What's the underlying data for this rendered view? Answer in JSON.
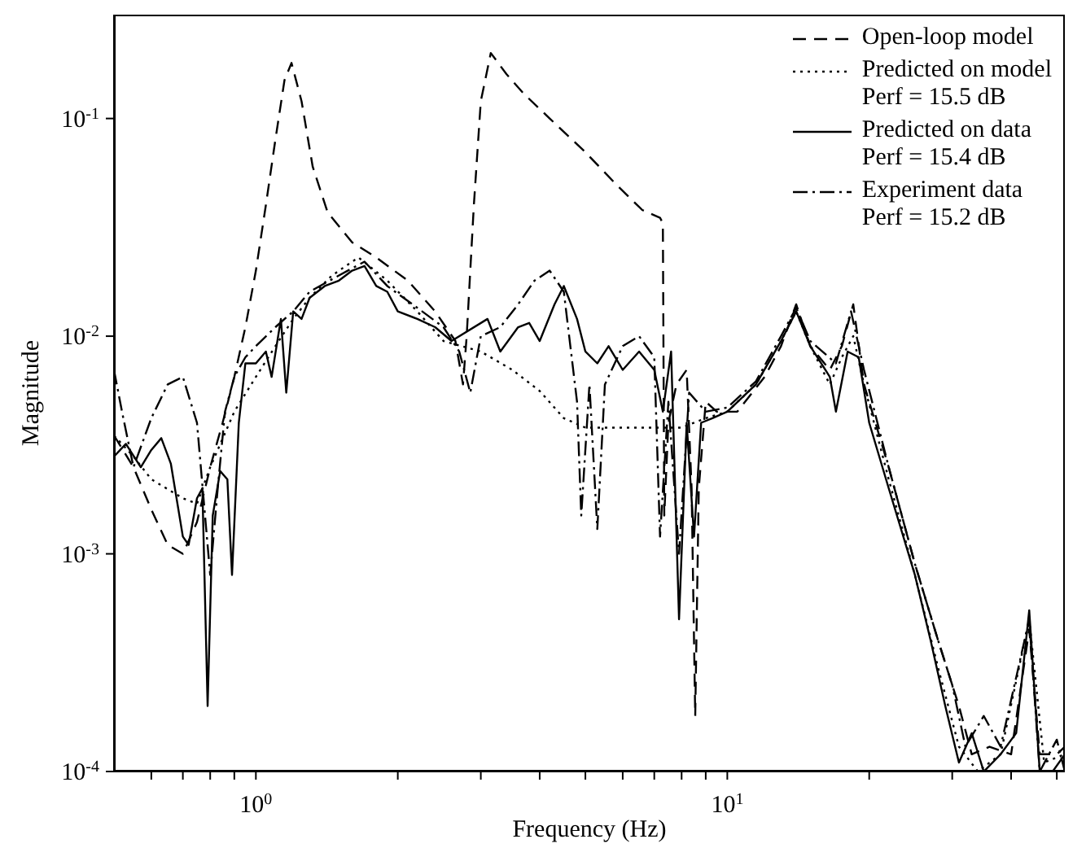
{
  "chart_data": {
    "type": "line",
    "xlabel": "Frequency (Hz)",
    "ylabel": "Magnitude",
    "log": "xy",
    "legend": "top right",
    "marker": "none",
    "xlim": [
      0.5,
      52
    ],
    "ylim": [
      0.0001,
      0.3
    ],
    "xticks": [
      {
        "value": 0.6,
        "label": null
      },
      {
        "value": 0.7,
        "label": null
      },
      {
        "value": 0.8,
        "label": null
      },
      {
        "value": 0.9,
        "label": null
      },
      {
        "value": 1,
        "label": "10$^{0}$"
      },
      {
        "value": 2,
        "label": null
      },
      {
        "value": 3,
        "label": null
      },
      {
        "value": 4,
        "label": null
      },
      {
        "value": 5,
        "label": null
      },
      {
        "value": 6,
        "label": null
      },
      {
        "value": 7,
        "label": null
      },
      {
        "value": 8,
        "label": null
      },
      {
        "value": 9,
        "label": null
      },
      {
        "value": 10,
        "label": "10$^{1}$"
      },
      {
        "value": 20,
        "label": null
      },
      {
        "value": 30,
        "label": null
      },
      {
        "value": 40,
        "label": null
      },
      {
        "value": 50,
        "label": null
      }
    ],
    "yticks": [
      {
        "value": 0.0001,
        "label": "10$^{-4}$"
      },
      {
        "value": 0.001,
        "label": "10$^{-3}$"
      },
      {
        "value": 0.01,
        "label": "10$^{-2}$"
      },
      {
        "value": 0.1,
        "label": "10$^{-1}$"
      }
    ],
    "series": [
      {
        "name": "Open-loop model",
        "color": "#000000",
        "line_style": "dashed",
        "x": [
          0.5,
          0.55,
          0.6,
          0.65,
          0.7,
          0.75,
          0.8,
          0.85,
          0.9,
          0.95,
          1.0,
          1.05,
          1.1,
          1.15,
          1.19,
          1.25,
          1.32,
          1.42,
          1.6,
          1.8,
          2.1,
          2.4,
          2.65,
          2.75,
          2.8,
          2.9,
          3.0,
          3.15,
          3.4,
          3.7,
          4.2,
          5.0,
          5.8,
          6.6,
          7.2,
          7.3,
          7.35,
          7.5,
          7.8,
          8.2,
          8.4,
          8.55,
          8.7,
          9,
          9.5,
          10.5,
          12,
          13,
          14,
          15,
          16.5,
          17.5,
          18.5,
          19.5,
          22,
          25,
          28,
          31,
          33,
          36,
          40,
          43.7,
          46,
          50,
          52
        ],
        "values": [
          0.0035,
          0.0025,
          0.0016,
          0.0011,
          0.001,
          0.0014,
          0.0025,
          0.004,
          0.0065,
          0.011,
          0.02,
          0.04,
          0.08,
          0.15,
          0.18,
          0.12,
          0.06,
          0.037,
          0.027,
          0.023,
          0.018,
          0.013,
          0.0095,
          0.006,
          0.01,
          0.04,
          0.12,
          0.2,
          0.16,
          0.13,
          0.1,
          0.07,
          0.05,
          0.038,
          0.035,
          0.033,
          0.0015,
          0.004,
          0.006,
          0.007,
          0.002,
          0.00018,
          0.002,
          0.005,
          0.0045,
          0.0045,
          0.0065,
          0.009,
          0.014,
          0.009,
          0.007,
          0.009,
          0.014,
          0.006,
          0.0025,
          0.0009,
          0.0004,
          0.0002,
          0.00012,
          0.00013,
          0.00012,
          0.00045,
          0.00012,
          0.00012,
          0.00013
        ]
      },
      {
        "name": "Predicted on model\nPerf = 15.5 dB",
        "color": "#000000",
        "line_style": "dotted",
        "x": [
          0.5,
          0.55,
          0.6,
          0.7,
          0.75,
          0.8,
          0.9,
          1.0,
          1.1,
          1.2,
          1.3,
          1.45,
          1.65,
          1.9,
          2.2,
          2.5,
          3.0,
          3.5,
          4.0,
          4.5,
          5.0,
          6.0,
          7.0,
          8.0,
          9,
          10,
          11.5,
          13,
          14,
          15,
          16.5,
          17.5,
          18.5,
          19.5,
          22,
          25,
          28,
          31,
          34,
          38,
          43.7,
          47,
          52
        ],
        "values": [
          0.0035,
          0.0028,
          0.0022,
          0.0018,
          0.0017,
          0.0025,
          0.0045,
          0.0065,
          0.009,
          0.012,
          0.015,
          0.019,
          0.023,
          0.018,
          0.013,
          0.0095,
          0.0085,
          0.007,
          0.0056,
          0.0042,
          0.0038,
          0.0038,
          0.0038,
          0.0038,
          0.0042,
          0.0045,
          0.006,
          0.0095,
          0.013,
          0.009,
          0.006,
          0.008,
          0.01,
          0.006,
          0.0022,
          0.0008,
          0.0003,
          0.00013,
          0.0001,
          0.00012,
          0.0005,
          0.00011,
          0.00012
        ]
      },
      {
        "name": "Predicted on data\nPerf = 15.4 dB",
        "color": "#000000",
        "line_style": "solid",
        "x": [
          0.5,
          0.53,
          0.57,
          0.6,
          0.63,
          0.66,
          0.7,
          0.72,
          0.75,
          0.77,
          0.79,
          0.81,
          0.84,
          0.87,
          0.89,
          0.92,
          0.95,
          1.0,
          1.05,
          1.08,
          1.13,
          1.16,
          1.2,
          1.25,
          1.3,
          1.4,
          1.5,
          1.6,
          1.7,
          1.8,
          1.9,
          2.0,
          2.2,
          2.4,
          2.6,
          3.1,
          3.3,
          3.6,
          3.8,
          4.0,
          4.3,
          4.5,
          4.8,
          5.0,
          5.3,
          5.6,
          6.0,
          6.5,
          7.0,
          7.3,
          7.6,
          7.9,
          8.2,
          8.5,
          8.8,
          9.3,
          10,
          11.5,
          13,
          14,
          15,
          16.5,
          17,
          18,
          19,
          20,
          22,
          25,
          27,
          29,
          31,
          33,
          35,
          38,
          41,
          43.7,
          46,
          49,
          52
        ],
        "values": [
          0.0028,
          0.0032,
          0.0025,
          0.003,
          0.0034,
          0.0026,
          0.0012,
          0.0011,
          0.0018,
          0.002,
          0.0002,
          0.0015,
          0.0024,
          0.0022,
          0.0008,
          0.004,
          0.0075,
          0.0075,
          0.0085,
          0.0065,
          0.012,
          0.0055,
          0.013,
          0.012,
          0.015,
          0.017,
          0.018,
          0.02,
          0.021,
          0.017,
          0.016,
          0.013,
          0.012,
          0.011,
          0.0095,
          0.012,
          0.0085,
          0.011,
          0.0115,
          0.0095,
          0.014,
          0.017,
          0.012,
          0.0085,
          0.0075,
          0.009,
          0.007,
          0.0085,
          0.007,
          0.0045,
          0.0085,
          0.0005,
          0.004,
          0.0012,
          0.004,
          0.0042,
          0.0045,
          0.006,
          0.0095,
          0.013,
          0.009,
          0.0065,
          0.0045,
          0.0085,
          0.008,
          0.004,
          0.002,
          0.0008,
          0.0004,
          0.0002,
          0.00011,
          0.00015,
          0.0001,
          0.00012,
          0.00015,
          0.00055,
          0.0001,
          0.0001,
          0.00012
        ]
      },
      {
        "name": "Experiment data\nPerf = 15.2 dB",
        "color": "#000000",
        "line_style": "dashdot",
        "x": [
          0.5,
          0.52,
          0.55,
          0.6,
          0.65,
          0.7,
          0.75,
          0.78,
          0.8,
          0.83,
          0.86,
          0.9,
          0.95,
          1.0,
          1.1,
          1.2,
          1.3,
          1.5,
          1.7,
          1.9,
          2.2,
          2.5,
          2.7,
          2.85,
          3.0,
          3.3,
          3.6,
          3.9,
          4.2,
          4.5,
          4.8,
          4.9,
          5.1,
          5.3,
          5.5,
          6.0,
          6.5,
          7.0,
          7.2,
          7.5,
          7.9,
          8.3,
          9,
          10,
          11.5,
          13,
          14,
          15,
          17,
          18.3,
          19.5,
          22,
          25,
          28,
          30,
          32,
          35,
          38,
          43.7,
          46,
          50,
          52
        ],
        "values": [
          0.007,
          0.0045,
          0.0025,
          0.0042,
          0.006,
          0.0065,
          0.004,
          0.0015,
          0.0008,
          0.002,
          0.0045,
          0.0065,
          0.008,
          0.009,
          0.011,
          0.013,
          0.016,
          0.019,
          0.022,
          0.017,
          0.0135,
          0.011,
          0.0085,
          0.0055,
          0.01,
          0.011,
          0.014,
          0.018,
          0.02,
          0.016,
          0.005,
          0.0015,
          0.006,
          0.0013,
          0.006,
          0.009,
          0.01,
          0.008,
          0.0012,
          0.005,
          0.001,
          0.0055,
          0.0045,
          0.0047,
          0.0062,
          0.01,
          0.0135,
          0.0095,
          0.0075,
          0.013,
          0.007,
          0.0025,
          0.0009,
          0.0004,
          0.00025,
          0.00013,
          0.00018,
          0.00013,
          0.0005,
          0.0001,
          0.00014,
          0.0001
        ]
      }
    ]
  }
}
